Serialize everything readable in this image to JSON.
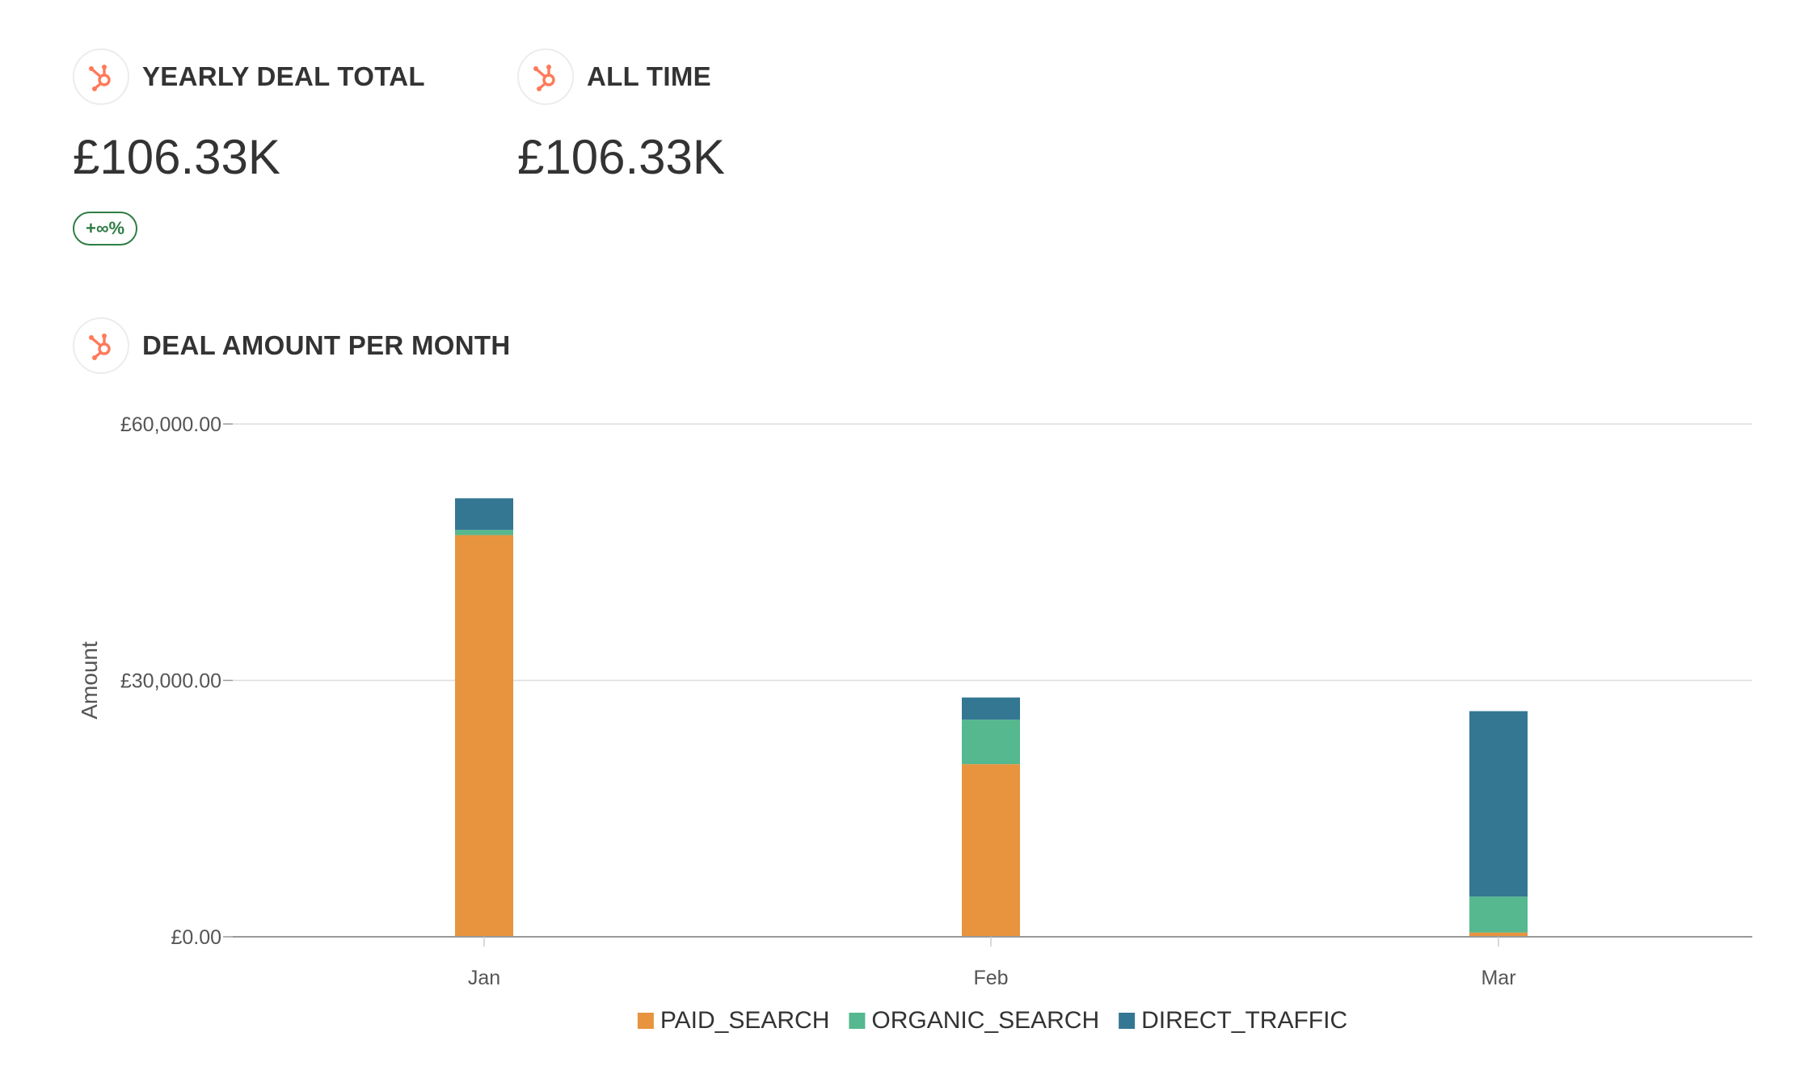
{
  "kpis": [
    {
      "title": "YEARLY DEAL TOTAL",
      "value": "£106.33K",
      "badge": "+∞%",
      "icon": "hubspot-logo-icon"
    },
    {
      "title": "ALL TIME",
      "value": "£106.33K",
      "icon": "hubspot-logo-icon"
    }
  ],
  "chart_tile": {
    "title": "DEAL AMOUNT PER MONTH",
    "icon": "hubspot-logo-icon"
  },
  "colors": {
    "brand_icon": "#ff7a59",
    "badge_green": "#2e7d45",
    "paid_search": "#e8943e",
    "organic_search": "#55b88e",
    "direct_traffic": "#347793"
  },
  "chart_data": {
    "type": "bar",
    "stacked": true,
    "categories": [
      "Jan",
      "Feb",
      "Mar"
    ],
    "series": [
      {
        "name": "PAID_SEARCH",
        "values": [
          47000,
          20200,
          500
        ]
      },
      {
        "name": "ORGANIC_SEARCH",
        "values": [
          600,
          5200,
          4200
        ]
      },
      {
        "name": "DIRECT_TRAFFIC",
        "values": [
          3700,
          2600,
          21700
        ]
      }
    ],
    "ylabel": "Amount",
    "xlabel": "",
    "ylim": [
      0,
      60000
    ],
    "yticks": [
      0,
      30000,
      60000
    ],
    "ytick_labels": [
      "£0.00",
      "£30,000.00",
      "£60,000.00"
    ],
    "grid": true,
    "legend_position": "bottom"
  }
}
